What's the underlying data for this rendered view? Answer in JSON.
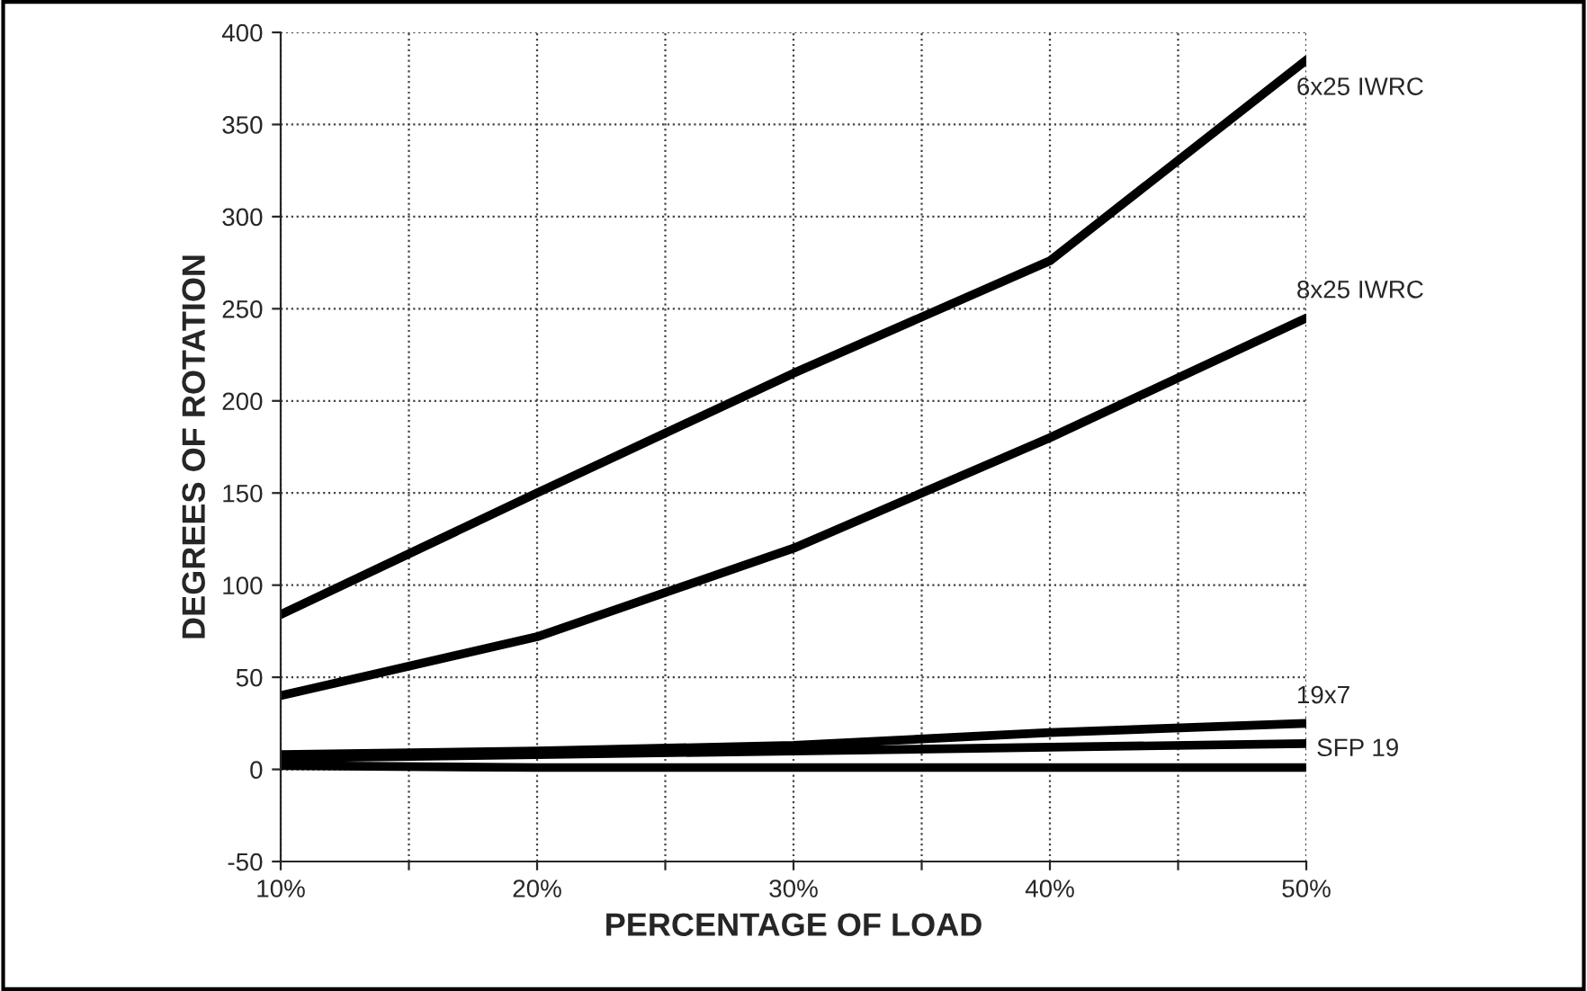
{
  "chart_data": {
    "type": "line",
    "xlabel": "PERCENTAGE OF LOAD",
    "ylabel": "DEGREES OF ROTATION",
    "x": [
      10,
      20,
      30,
      40,
      50
    ],
    "series": [
      {
        "name": "6x25 IWRC",
        "color": "#000000",
        "values": [
          84,
          150,
          215,
          276,
          385
        ]
      },
      {
        "name": "8x25 IWRC",
        "color": "#000000",
        "values": [
          40,
          72,
          120,
          180,
          245
        ]
      },
      {
        "name": "19x7",
        "color": "#000000",
        "values": [
          8,
          10,
          13,
          20,
          25
        ]
      },
      {
        "name": "SFP 19",
        "color": "#000000",
        "values": [
          6,
          8,
          10,
          12,
          14
        ]
      },
      {
        "color": "#000000",
        "values": [
          2,
          1,
          1,
          1,
          1
        ]
      }
    ],
    "xlim": [
      10,
      50
    ],
    "xticks": [
      {
        "value": 10,
        "label": "10%"
      },
      {
        "value": 15,
        "label": null
      },
      {
        "value": 20,
        "label": "20%"
      },
      {
        "value": 25,
        "label": null
      },
      {
        "value": 30,
        "label": "30%"
      },
      {
        "value": 35,
        "label": null
      },
      {
        "value": 40,
        "label": "40%"
      },
      {
        "value": 45,
        "label": null
      },
      {
        "value": 50,
        "label": "50%"
      }
    ],
    "ylim": [
      -50,
      400
    ],
    "yticks": [
      -50,
      0,
      50,
      100,
      150,
      200,
      250,
      300,
      350,
      400
    ],
    "grid": true,
    "legend": false,
    "marker": "none",
    "line_style": "solid"
  }
}
